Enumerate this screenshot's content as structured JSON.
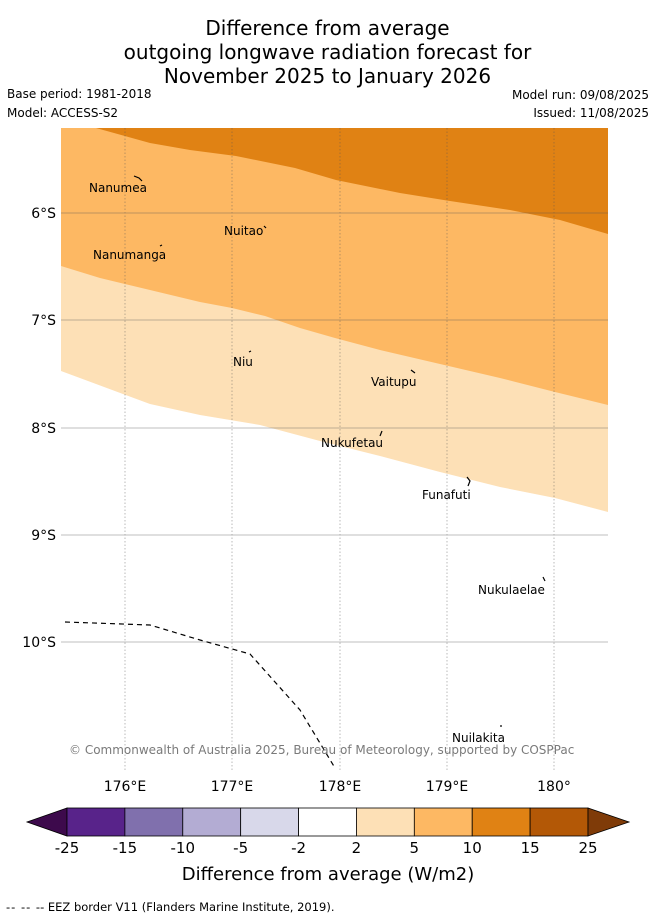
{
  "title": {
    "line1": "Difference from average",
    "line2": "outgoing longwave radiation forecast for",
    "line3": "November 2025 to January 2026"
  },
  "info": {
    "base_period": "Base period: 1981-2018",
    "model": "Model: ACCESS-S2",
    "model_run": "Model run: 09/08/2025",
    "issued": "Issued: 11/08/2025"
  },
  "map": {
    "lat_ticks": [
      "6°S",
      "7°S",
      "8°S",
      "9°S",
      "10°S"
    ],
    "lon_ticks": [
      "176°E",
      "177°E",
      "178°E",
      "179°E",
      "180°"
    ],
    "islands": [
      "Nanumea",
      "Nuitao",
      "Nanumanga",
      "Niu",
      "Vaitupu",
      "Nukufetau",
      "Funafuti",
      "Nukulaelae",
      "Nuilakita"
    ],
    "copyright": "© Commonwealth of Australia 2025, Bureau of Meteorology, supported by COSPPac"
  },
  "colorbar": {
    "labels": [
      "-25",
      "-15",
      "-10",
      "-5",
      "-2",
      "2",
      "5",
      "10",
      "15",
      "25"
    ],
    "colors": [
      "#3d0a4c",
      "#58238a",
      "#8070ad",
      "#b3acd3",
      "#d8d8ea",
      "#ffffff",
      "#fde0b6",
      "#fdb863",
      "#e08214",
      "#b35806",
      "#7f3b08"
    ],
    "title": "Difference from average (W/m2)"
  },
  "legend": {
    "eez_label": "-- EEZ border V11 (Flanders Marine Institute, 2019)."
  }
}
